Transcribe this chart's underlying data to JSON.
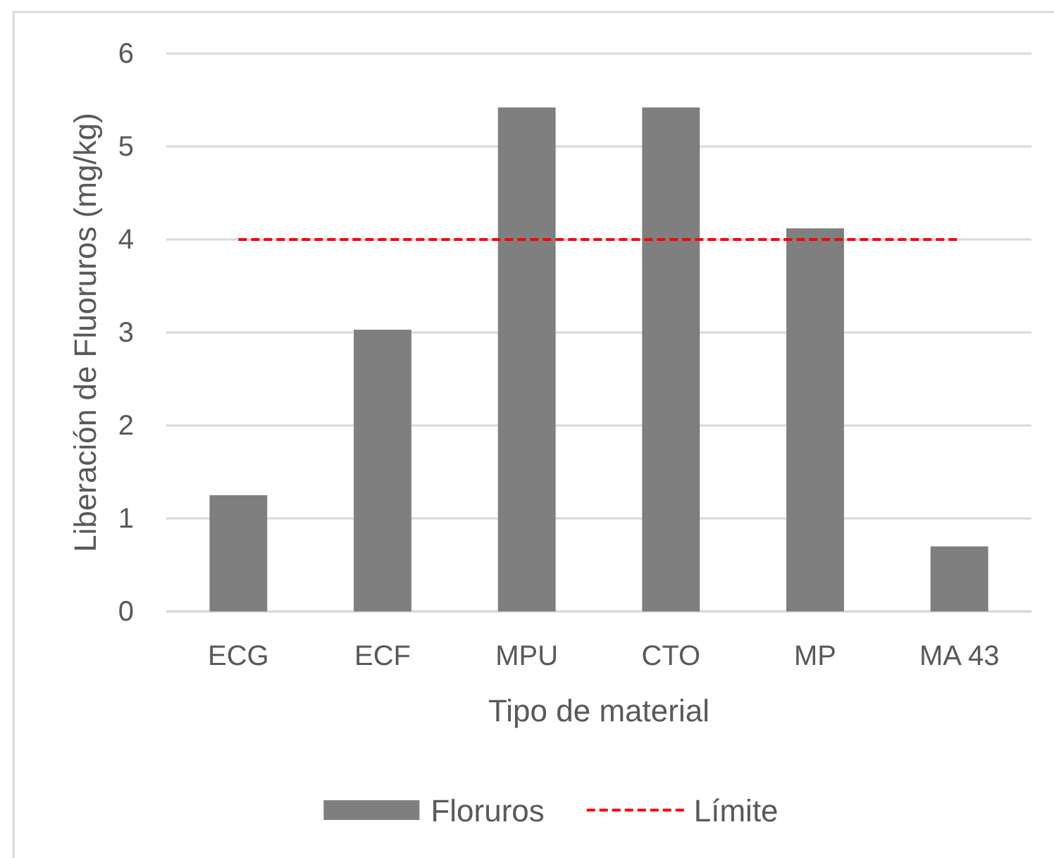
{
  "chart_data": {
    "type": "bar",
    "xlabel": "Tipo de material",
    "ylabel": "Liberación de Fluoruros (mg/kg)",
    "categories": [
      "ECG",
      "ECF",
      "MPU",
      "CTO",
      "MP",
      "MA 43"
    ],
    "series": [
      {
        "name": "Floruros",
        "color": "#7f7f7f",
        "values": [
          1.25,
          3.03,
          5.42,
          5.42,
          4.12,
          0.7
        ]
      },
      {
        "name": "Límite",
        "type": "line",
        "color": "#ff0000",
        "line_style": "dashed",
        "values": [
          4,
          4,
          4,
          4,
          4,
          4
        ]
      }
    ],
    "ylim": [
      0,
      6
    ],
    "yticks": [
      0,
      1,
      2,
      3,
      4,
      5,
      6
    ],
    "grid": "y",
    "legend": "bottom"
  }
}
